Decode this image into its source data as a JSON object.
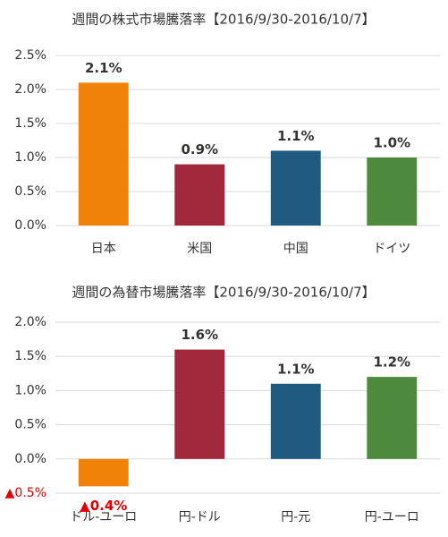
{
  "chart_data": [
    {
      "type": "bar",
      "title": "週間の株式市場騰落率【2016/9/30-2016/10/7】",
      "categories": [
        "日本",
        "米国",
        "中国",
        "ドイツ"
      ],
      "values": [
        2.1,
        0.9,
        1.1,
        1.0
      ],
      "value_labels": [
        "2.1%",
        "0.9%",
        "1.1%",
        "1.0%"
      ],
      "colors": [
        "#f0820a",
        "#a0283a",
        "#1f5a80",
        "#4e8a3e"
      ],
      "ylim": [
        0,
        2.5
      ],
      "yticks": [
        {
          "value": 0,
          "label": "0.0%"
        },
        {
          "value": 0.5,
          "label": "0.5%"
        },
        {
          "value": 1,
          "label": "1.0%"
        },
        {
          "value": 1.5,
          "label": "1.5%"
        },
        {
          "value": 2,
          "label": "2.0%"
        },
        {
          "value": 2.5,
          "label": "2.5%"
        }
      ],
      "grid": true
    },
    {
      "type": "bar",
      "title": "週間の為替市場騰落率【2016/9/30-2016/10/7】",
      "categories": [
        "ドル-ユーロ",
        "円-ドル",
        "円-元",
        "円-ユーロ"
      ],
      "values": [
        -0.4,
        1.6,
        1.1,
        1.2
      ],
      "value_labels": [
        "▲0.4%",
        "1.6%",
        "1.1%",
        "1.2%"
      ],
      "colors": [
        "#f0820a",
        "#a0283a",
        "#1f5a80",
        "#4e8a3e"
      ],
      "negative_label_color": "#e00000",
      "ylim": [
        -0.5,
        2.0
      ],
      "yticks": [
        {
          "value": -0.5,
          "label": "▲0.5%"
        },
        {
          "value": 0,
          "label": "0.0%"
        },
        {
          "value": 0.5,
          "label": "0.5%"
        },
        {
          "value": 1,
          "label": "1.0%"
        },
        {
          "value": 1.5,
          "label": "1.5%"
        },
        {
          "value": 2,
          "label": "2.0%"
        }
      ],
      "grid": true
    }
  ]
}
